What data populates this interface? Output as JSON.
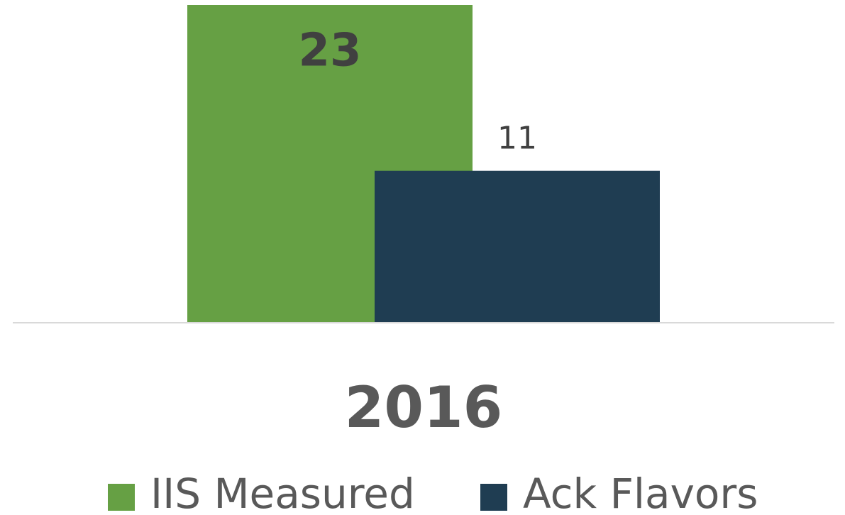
{
  "chart_data": {
    "type": "bar",
    "categories": [
      "2016"
    ],
    "series": [
      {
        "name": "IIS Measured",
        "color": "#66a044",
        "values": [
          23
        ]
      },
      {
        "name": "Ack Flavors",
        "color": "#1f3d52",
        "values": [
          11
        ]
      }
    ],
    "ylim": [
      0,
      23
    ],
    "legend": "bottom"
  }
}
